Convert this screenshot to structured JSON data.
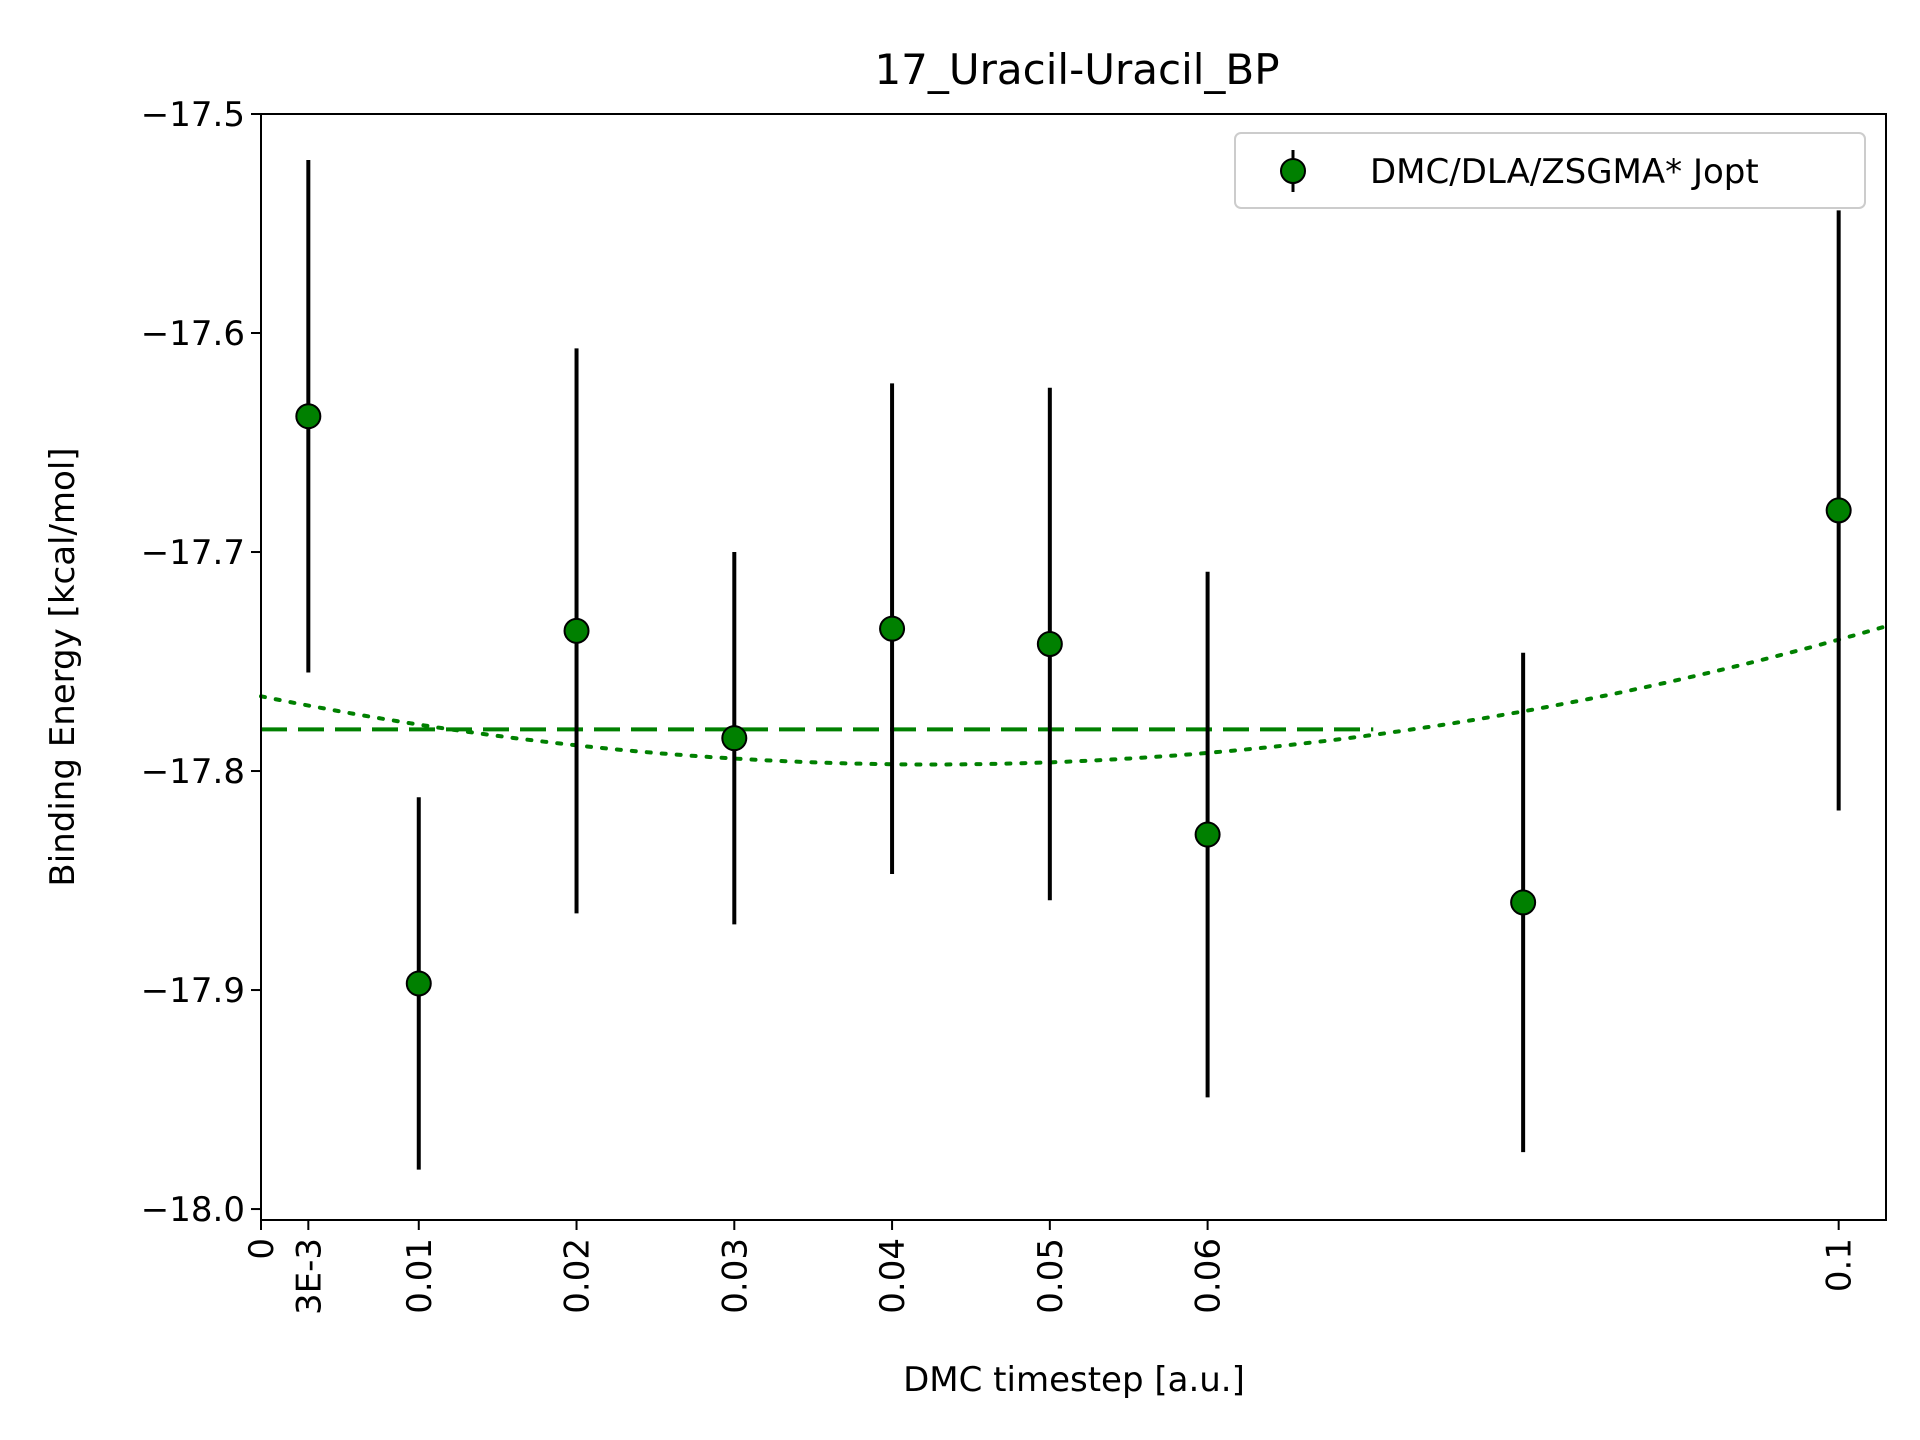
{
  "chart_data": {
    "type": "scatter",
    "title": "17_Uracil-Uracil_BP",
    "xlabel": "DMC timestep [a.u.]",
    "ylabel": "Binding Energy [kcal/mol]",
    "xlim": [
      0,
      0.103
    ],
    "ylim": [
      -18.005,
      -17.5
    ],
    "x_ticks": [
      {
        "value": 0,
        "label": "0"
      },
      {
        "value": 0.003,
        "label": "3E-3"
      },
      {
        "value": 0.01,
        "label": "0.01"
      },
      {
        "value": 0.02,
        "label": "0.02"
      },
      {
        "value": 0.03,
        "label": "0.03"
      },
      {
        "value": 0.04,
        "label": "0.04"
      },
      {
        "value": 0.05,
        "label": "0.05"
      },
      {
        "value": 0.06,
        "label": "0.06"
      },
      {
        "value": 0.1,
        "label": "0.1"
      }
    ],
    "y_ticks": [
      {
        "value": -17.5,
        "label": "−17.5"
      },
      {
        "value": -17.6,
        "label": "−17.6"
      },
      {
        "value": -17.7,
        "label": "−17.7"
      },
      {
        "value": -17.8,
        "label": "−17.8"
      },
      {
        "value": -17.9,
        "label": "−17.9"
      },
      {
        "value": -18.0,
        "label": "−18.0"
      }
    ],
    "grid": false,
    "legend": {
      "position": "top-right",
      "entries": [
        "DMC/DLA/ZSGMA* Jopt"
      ]
    },
    "series": [
      {
        "name": "DMC/DLA/ZSGMA* Jopt",
        "color": "#008000",
        "marker_edge": "#000000",
        "error_color": "#000000",
        "x": [
          0.003,
          0.01,
          0.02,
          0.03,
          0.04,
          0.05,
          0.06,
          0.08,
          0.1
        ],
        "y": [
          -17.638,
          -17.897,
          -17.736,
          -17.785,
          -17.735,
          -17.742,
          -17.829,
          -17.86,
          -17.681
        ],
        "yerr": [
          0.117,
          0.085,
          0.129,
          0.085,
          0.112,
          0.117,
          0.12,
          0.114,
          0.137
        ]
      }
    ],
    "fits": [
      {
        "style": "dashed",
        "color": "#008000",
        "kind": "constant",
        "value": -17.781,
        "x_range": [
          0,
          0.0705
        ]
      },
      {
        "style": "dotted",
        "color": "#008000",
        "kind": "quadratic",
        "vertex_x": 0.0425,
        "vertex_y": -17.797,
        "curvature": 17.24,
        "x_range": [
          0,
          0.103
        ]
      }
    ]
  }
}
